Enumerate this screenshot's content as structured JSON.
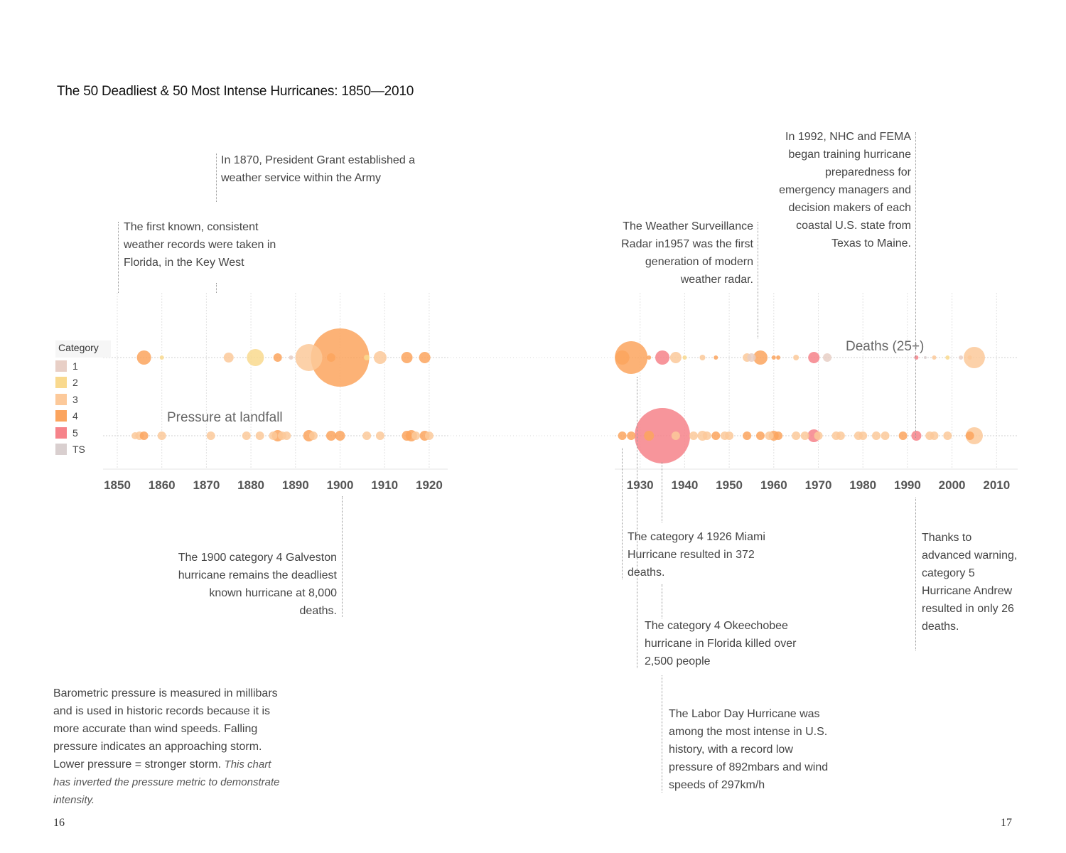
{
  "title": "The 50 Deadliest & 50 Most Intense Hurricanes: 1850—2010",
  "legend": {
    "title": "Category",
    "items": [
      {
        "label": "1",
        "color": "#e8cfc6"
      },
      {
        "label": "2",
        "color": "#f9d98e"
      },
      {
        "label": "3",
        "color": "#fcc99a"
      },
      {
        "label": "4",
        "color": "#fba45e"
      },
      {
        "label": "5",
        "color": "#f6838a"
      },
      {
        "label": "TS",
        "color": "#d9cfcf"
      }
    ]
  },
  "chart_data": {
    "type": "scatter",
    "title": "The 50 Deadliest & 50 Most Intense Hurricanes: 1850—2010",
    "x_ticks_left": [
      "1850",
      "1860",
      "1870",
      "1880",
      "1890",
      "1900",
      "1910",
      "1920"
    ],
    "x_ticks_right": [
      "1930",
      "1940",
      "1950",
      "1960",
      "1970",
      "1980",
      "1990",
      "2000",
      "2010"
    ],
    "xlim_left": [
      1850,
      1920
    ],
    "xlim_right": [
      1925,
      2010
    ],
    "series": [
      {
        "name": "Deaths (25+)",
        "points": [
          {
            "year": 1856,
            "cat": "4",
            "size": 10
          },
          {
            "year": 1860,
            "cat": "2",
            "size": 3
          },
          {
            "year": 1875,
            "cat": "3",
            "size": 7
          },
          {
            "year": 1881,
            "cat": "2",
            "size": 12
          },
          {
            "year": 1886,
            "cat": "4",
            "size": 6
          },
          {
            "year": 1889,
            "cat": "1",
            "size": 3
          },
          {
            "year": 1893,
            "cat": "3",
            "size": 19
          },
          {
            "year": 1898,
            "cat": "4",
            "size": 6
          },
          {
            "year": 1900,
            "cat": "4",
            "size": 41
          },
          {
            "year": 1906,
            "cat": "2",
            "size": 4
          },
          {
            "year": 1909,
            "cat": "3",
            "size": 9
          },
          {
            "year": 1915,
            "cat": "4",
            "size": 8
          },
          {
            "year": 1919,
            "cat": "4",
            "size": 8
          },
          {
            "year": 1926,
            "cat": "4",
            "size": 10
          },
          {
            "year": 1928,
            "cat": "4",
            "size": 23
          },
          {
            "year": 1932,
            "cat": "4",
            "size": 3
          },
          {
            "year": 1935,
            "cat": "5",
            "size": 10
          },
          {
            "year": 1938,
            "cat": "3",
            "size": 8
          },
          {
            "year": 1940,
            "cat": "2",
            "size": 3
          },
          {
            "year": 1944,
            "cat": "3",
            "size": 4
          },
          {
            "year": 1947,
            "cat": "4",
            "size": 3
          },
          {
            "year": 1954,
            "cat": "3",
            "size": 6
          },
          {
            "year": 1955,
            "cat": "1",
            "size": 6
          },
          {
            "year": 1957,
            "cat": "4",
            "size": 10
          },
          {
            "year": 1960,
            "cat": "4",
            "size": 3
          },
          {
            "year": 1961,
            "cat": "4",
            "size": 3
          },
          {
            "year": 1965,
            "cat": "3",
            "size": 4
          },
          {
            "year": 1969,
            "cat": "5",
            "size": 8
          },
          {
            "year": 1972,
            "cat": "1",
            "size": 6
          },
          {
            "year": 1992,
            "cat": "5",
            "size": 3
          },
          {
            "year": 1994,
            "cat": "TS",
            "size": 2
          },
          {
            "year": 1996,
            "cat": "3",
            "size": 3
          },
          {
            "year": 1999,
            "cat": "2",
            "size": 3
          },
          {
            "year": 2002,
            "cat": "1",
            "size": 3
          },
          {
            "year": 2004,
            "cat": "3",
            "size": 3
          },
          {
            "year": 2005,
            "cat": "3",
            "size": 15
          }
        ]
      },
      {
        "name": "Pressure at landfall",
        "points": [
          {
            "year": 1854,
            "cat": "3",
            "size": 5
          },
          {
            "year": 1855,
            "cat": "3",
            "size": 6
          },
          {
            "year": 1856,
            "cat": "4",
            "size": 6
          },
          {
            "year": 1860,
            "cat": "3",
            "size": 6
          },
          {
            "year": 1871,
            "cat": "3",
            "size": 6
          },
          {
            "year": 1879,
            "cat": "3",
            "size": 6
          },
          {
            "year": 1882,
            "cat": "3",
            "size": 6
          },
          {
            "year": 1885,
            "cat": "3",
            "size": 6
          },
          {
            "year": 1886,
            "cat": "4",
            "size": 8
          },
          {
            "year": 1887,
            "cat": "3",
            "size": 6
          },
          {
            "year": 1888,
            "cat": "3",
            "size": 6
          },
          {
            "year": 1893,
            "cat": "4",
            "size": 8
          },
          {
            "year": 1894,
            "cat": "3",
            "size": 6
          },
          {
            "year": 1898,
            "cat": "4",
            "size": 7
          },
          {
            "year": 1900,
            "cat": "4",
            "size": 7
          },
          {
            "year": 1906,
            "cat": "3",
            "size": 6
          },
          {
            "year": 1909,
            "cat": "3",
            "size": 6
          },
          {
            "year": 1915,
            "cat": "4",
            "size": 7
          },
          {
            "year": 1916,
            "cat": "4",
            "size": 8
          },
          {
            "year": 1917,
            "cat": "3",
            "size": 6
          },
          {
            "year": 1919,
            "cat": "4",
            "size": 7
          },
          {
            "year": 1920,
            "cat": "3",
            "size": 6
          },
          {
            "year": 1926,
            "cat": "4",
            "size": 6
          },
          {
            "year": 1928,
            "cat": "4",
            "size": 6
          },
          {
            "year": 1932,
            "cat": "4",
            "size": 7
          },
          {
            "year": 1935,
            "cat": "5",
            "size": 39
          },
          {
            "year": 1938,
            "cat": "3",
            "size": 6
          },
          {
            "year": 1942,
            "cat": "3",
            "size": 6
          },
          {
            "year": 1944,
            "cat": "3",
            "size": 7
          },
          {
            "year": 1945,
            "cat": "3",
            "size": 6
          },
          {
            "year": 1947,
            "cat": "4",
            "size": 6
          },
          {
            "year": 1949,
            "cat": "3",
            "size": 6
          },
          {
            "year": 1950,
            "cat": "3",
            "size": 6
          },
          {
            "year": 1954,
            "cat": "4",
            "size": 6
          },
          {
            "year": 1957,
            "cat": "4",
            "size": 6
          },
          {
            "year": 1959,
            "cat": "3",
            "size": 6
          },
          {
            "year": 1960,
            "cat": "4",
            "size": 7
          },
          {
            "year": 1961,
            "cat": "4",
            "size": 6
          },
          {
            "year": 1965,
            "cat": "3",
            "size": 6
          },
          {
            "year": 1967,
            "cat": "3",
            "size": 6
          },
          {
            "year": 1969,
            "cat": "5",
            "size": 9
          },
          {
            "year": 1970,
            "cat": "3",
            "size": 6
          },
          {
            "year": 1974,
            "cat": "3",
            "size": 6
          },
          {
            "year": 1975,
            "cat": "3",
            "size": 6
          },
          {
            "year": 1979,
            "cat": "3",
            "size": 6
          },
          {
            "year": 1980,
            "cat": "3",
            "size": 6
          },
          {
            "year": 1983,
            "cat": "3",
            "size": 6
          },
          {
            "year": 1985,
            "cat": "3",
            "size": 6
          },
          {
            "year": 1989,
            "cat": "4",
            "size": 6
          },
          {
            "year": 1992,
            "cat": "5",
            "size": 7
          },
          {
            "year": 1995,
            "cat": "3",
            "size": 6
          },
          {
            "year": 1996,
            "cat": "3",
            "size": 6
          },
          {
            "year": 1999,
            "cat": "3",
            "size": 6
          },
          {
            "year": 2004,
            "cat": "4",
            "size": 6
          },
          {
            "year": 2005,
            "cat": "3",
            "size": 12
          }
        ]
      }
    ]
  },
  "annotations": {
    "key_west": "The first known, consistent weather records were taken in Florida, in the Key West",
    "grant": "In 1870, President Grant established a weather service within the Army",
    "radar": "The Weather Surveillance Radar in1957 was the first generation of modern weather radar.",
    "nhc": "In 1992, NHC and FEMA began training hurricane preparedness for emergency managers and decision makers of each coastal U.S. state from Texas to Maine.",
    "galveston": "The 1900 category 4 Galveston hurricane remains the deadliest known hurricane at 8,000 deaths.",
    "miami": "The category 4 1926 Miami Hurricane resulted in 372 deaths.",
    "okeechobee": "The category 4 Okeechobee hurricane in Florida killed over 2,500 people",
    "labor_day": "The Labor Day Hurricane was among the most intense in U.S. history, with a record low pressure of 892mbars and wind speeds of 297km/h",
    "andrew": "Thanks to advanced warning, category 5 Hurricane Andrew resulted in only 26 deaths."
  },
  "body_text": {
    "main": "Barometric pressure is measured in millibars and is used in historic records because it is more accurate than wind speeds. Falling pressure indicates an approaching storm. Lower pressure = stronger storm.",
    "italic": "This chart has inverted the pressure metric to demonstrate intensity."
  },
  "page_numbers": {
    "left": "16",
    "right": "17"
  }
}
